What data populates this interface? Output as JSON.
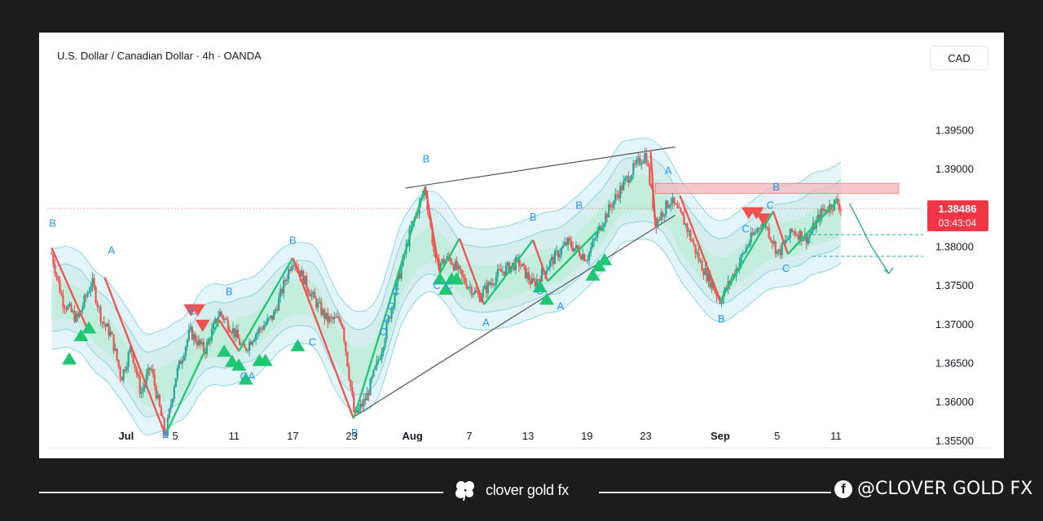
{
  "header": {
    "symbol_title": "U.S. Dollar / Canadian Dollar · 4h · OANDA",
    "currency": "CAD"
  },
  "price_badge": {
    "price": "1.38486",
    "countdown": "03:43:04",
    "color": "#f23645"
  },
  "footer": {
    "brand": "clover gold fx",
    "social": "@CLOVER GOLD FX"
  },
  "colors": {
    "bull": "#26a69a",
    "bear": "#ef5350",
    "label": "#2196f3",
    "triangle": "#1fc773"
  },
  "chart_data": {
    "type": "candlestick",
    "symbol": "USDCAD",
    "timeframe": "4h",
    "ylim": [
      1.352,
      1.397
    ],
    "y_ticks": [
      1.395,
      1.39,
      1.385,
      1.38,
      1.375,
      1.37,
      1.365,
      1.36,
      1.355
    ],
    "y_tick_labels": [
      "1.39500",
      "1.39000",
      "1.38500",
      "1.38000",
      "1.37500",
      "1.37000",
      "1.36500",
      "1.36000",
      "1.35500"
    ],
    "x_ticks": [
      "Jul",
      "5",
      "11",
      "17",
      "23",
      "Aug",
      "7",
      "13",
      "19",
      "23",
      "Sep",
      "5",
      "11"
    ],
    "x_tick_days": [
      0,
      5,
      11,
      17,
      23,
      29.2,
      35,
      41,
      47,
      53,
      60.6,
      66.4,
      72.4
    ],
    "x_range_days": [
      -7.8,
      81.3
    ],
    "current_price": 1.38486,
    "price_path": [
      [
        -7.6,
        1.379
      ],
      [
        -6.5,
        1.373
      ],
      [
        -5,
        1.3705
      ],
      [
        -3.5,
        1.3755
      ],
      [
        -2.5,
        1.3705
      ],
      [
        -1.5,
        1.3685
      ],
      [
        -0.5,
        1.363
      ],
      [
        0.5,
        1.367
      ],
      [
        1.5,
        1.361
      ],
      [
        2.5,
        1.3645
      ],
      [
        4,
        1.3555
      ],
      [
        5,
        1.363
      ],
      [
        6.5,
        1.369
      ],
      [
        8,
        1.3665
      ],
      [
        9.5,
        1.3715
      ],
      [
        11,
        1.369
      ],
      [
        12,
        1.3665
      ],
      [
        13,
        1.3685
      ],
      [
        15,
        1.371
      ],
      [
        17,
        1.3785
      ],
      [
        19,
        1.3735
      ],
      [
        20.5,
        1.3705
      ],
      [
        22,
        1.3705
      ],
      [
        23.3,
        1.358
      ],
      [
        24.5,
        1.3605
      ],
      [
        26,
        1.3665
      ],
      [
        27.5,
        1.3745
      ],
      [
        29,
        1.382
      ],
      [
        30.5,
        1.3875
      ],
      [
        31.6,
        1.3775
      ],
      [
        33,
        1.3785
      ],
      [
        34.5,
        1.3755
      ],
      [
        36,
        1.3735
      ],
      [
        38,
        1.3765
      ],
      [
        40,
        1.378
      ],
      [
        41.5,
        1.375
      ],
      [
        43,
        1.3775
      ],
      [
        45,
        1.3805
      ],
      [
        47,
        1.3785
      ],
      [
        48.5,
        1.383
      ],
      [
        50,
        1.3865
      ],
      [
        51.5,
        1.3895
      ],
      [
        53,
        1.392
      ],
      [
        54,
        1.383
      ],
      [
        55.5,
        1.386
      ],
      [
        57,
        1.383
      ],
      [
        58.5,
        1.378
      ],
      [
        60.6,
        1.373
      ],
      [
        62,
        1.3765
      ],
      [
        63.5,
        1.3805
      ],
      [
        65,
        1.3835
      ],
      [
        66.5,
        1.379
      ],
      [
        68,
        1.382
      ],
      [
        69.5,
        1.381
      ],
      [
        71,
        1.3845
      ],
      [
        72.5,
        1.3858
      ],
      [
        72.9,
        1.38486
      ]
    ],
    "trendlines": [
      {
        "from": [
          28.5,
          1.3875
        ],
        "to": [
          56,
          1.3928
        ],
        "color": "#555555"
      },
      {
        "from": [
          23.2,
          1.358
        ],
        "to": [
          56,
          1.384
        ],
        "color": "#555555"
      },
      {
        "from": [
          -8,
          1.38486
        ],
        "to": [
          81.3,
          1.38486
        ],
        "color": "#ef5350",
        "style": "dotted"
      },
      {
        "from": [
          70,
          1.3815
        ],
        "to": [
          81.3,
          1.3815
        ],
        "color": "#26a69a",
        "style": "dashed"
      },
      {
        "from": [
          70,
          1.3787
        ],
        "to": [
          81.3,
          1.3787
        ],
        "color": "#26a69a",
        "style": "dashed"
      }
    ],
    "zigzag": [
      {
        "from": [
          -7.6,
          1.3798
        ],
        "to": [
          -4,
          1.3695
        ],
        "color": "#ef5350"
      },
      {
        "from": [
          -2.2,
          1.376
        ],
        "to": [
          4,
          1.3557
        ],
        "color": "#ef5350"
      },
      {
        "from": [
          4,
          1.3557
        ],
        "to": [
          9.5,
          1.3705
        ],
        "color": "#1fc773"
      },
      {
        "from": [
          9.5,
          1.3705
        ],
        "to": [
          11.5,
          1.3665
        ],
        "color": "#ef5350"
      },
      {
        "from": [
          11.5,
          1.3665
        ],
        "to": [
          17,
          1.3785
        ],
        "color": "#1fc773"
      },
      {
        "from": [
          17,
          1.3785
        ],
        "to": [
          23.2,
          1.3578
        ],
        "color": "#ef5350"
      },
      {
        "from": [
          23.2,
          1.3578
        ],
        "to": [
          30.5,
          1.3877
        ],
        "color": "#1fc773"
      },
      {
        "from": [
          30.5,
          1.3877
        ],
        "to": [
          32,
          1.3765
        ],
        "color": "#ef5350"
      },
      {
        "from": [
          32,
          1.3765
        ],
        "to": [
          34,
          1.381
        ],
        "color": "#1fc773"
      },
      {
        "from": [
          34,
          1.381
        ],
        "to": [
          36.5,
          1.3725
        ],
        "color": "#ef5350"
      },
      {
        "from": [
          36.5,
          1.3725
        ],
        "to": [
          41.5,
          1.3808
        ],
        "color": "#1fc773"
      },
      {
        "from": [
          41.5,
          1.3808
        ],
        "to": [
          43,
          1.3755
        ],
        "color": "#ef5350"
      },
      {
        "from": [
          43,
          1.3755
        ],
        "to": [
          48.5,
          1.3825
        ],
        "color": "#1fc773"
      },
      {
        "from": [
          53.5,
          1.3922
        ],
        "to": [
          54,
          1.3825
        ],
        "color": "#ef5350"
      },
      {
        "from": [
          56.5,
          1.3865
        ],
        "to": [
          60.6,
          1.373
        ],
        "color": "#ef5350"
      },
      {
        "from": [
          60.6,
          1.373
        ],
        "to": [
          66,
          1.3845
        ],
        "color": "#1fc773"
      },
      {
        "from": [
          66,
          1.3845
        ],
        "to": [
          67.5,
          1.379
        ],
        "color": "#ef5350"
      },
      {
        "from": [
          67.5,
          1.379
        ],
        "to": [
          72.5,
          1.3858
        ],
        "color": "#1fc773"
      }
    ],
    "zones": [
      {
        "x": [
          54,
          78.8
        ],
        "y": [
          1.3868,
          1.3881
        ],
        "color": "#f5b8bd"
      }
    ],
    "forecast_arrow": {
      "from": [
        73.8,
        1.3855
      ],
      "via": [
        76,
        1.38
      ],
      "to": [
        77.8,
        1.3765
      ],
      "color": "#26a69a"
    },
    "labels": [
      {
        "text": "B",
        "day": -7.5,
        "price": 1.3825
      },
      {
        "text": "A",
        "day": -1.5,
        "price": 1.379
      },
      {
        "text": "B",
        "day": 4,
        "price": 1.3553
      },
      {
        "text": "C",
        "day": 6.8,
        "price": 1.3712
      },
      {
        "text": "B",
        "day": 10.5,
        "price": 1.3737
      },
      {
        "text": "C",
        "day": 12,
        "price": 1.3628
      },
      {
        "text": "A",
        "day": 12.8,
        "price": 1.3628
      },
      {
        "text": "B",
        "day": 17,
        "price": 1.3803
      },
      {
        "text": "C",
        "day": 19,
        "price": 1.3672
      },
      {
        "text": "B",
        "day": 23.3,
        "price": 1.3555
      },
      {
        "text": "C",
        "day": 26.2,
        "price": 1.3685
      },
      {
        "text": "C",
        "day": 26.6,
        "price": 1.3702
      },
      {
        "text": "C",
        "day": 27,
        "price": 1.3718
      },
      {
        "text": "C",
        "day": 27.5,
        "price": 1.3737
      },
      {
        "text": "B",
        "day": 30.6,
        "price": 1.3908
      },
      {
        "text": "C",
        "day": 31.7,
        "price": 1.3745
      },
      {
        "text": "C",
        "day": 32.9,
        "price": 1.3745
      },
      {
        "text": "A",
        "day": 36.7,
        "price": 1.3697
      },
      {
        "text": "B",
        "day": 41.5,
        "price": 1.3833
      },
      {
        "text": "C",
        "day": 42.2,
        "price": 1.3738
      },
      {
        "text": "A",
        "day": 44.3,
        "price": 1.3718
      },
      {
        "text": "B",
        "day": 46.2,
        "price": 1.3848
      },
      {
        "text": "A",
        "day": 55.3,
        "price": 1.3893
      },
      {
        "text": "B",
        "day": 60.7,
        "price": 1.3702
      },
      {
        "text": "C",
        "day": 63.2,
        "price": 1.3818
      },
      {
        "text": "C",
        "day": 65.7,
        "price": 1.3848
      },
      {
        "text": "B",
        "day": 66.3,
        "price": 1.3872
      },
      {
        "text": "C",
        "day": 67.3,
        "price": 1.3767
      }
    ],
    "buy_signals": [
      [
        -5.8,
        1.3655
      ],
      [
        -4.6,
        1.3685
      ],
      [
        -3.8,
        1.3695
      ],
      [
        10,
        1.3665
      ],
      [
        10.8,
        1.3652
      ],
      [
        11.5,
        1.3647
      ],
      [
        12.2,
        1.3629
      ],
      [
        13.6,
        1.3653
      ],
      [
        14.2,
        1.3653
      ],
      [
        17.5,
        1.3672
      ],
      [
        32,
        1.3758
      ],
      [
        32.6,
        1.3745
      ],
      [
        33.2,
        1.3758
      ],
      [
        33.7,
        1.3758
      ],
      [
        42.2,
        1.3748
      ],
      [
        42.9,
        1.3732
      ],
      [
        47.6,
        1.3763
      ],
      [
        48.2,
        1.3775
      ],
      [
        48.8,
        1.3783
      ]
    ],
    "sell_signals": [
      [
        6.6,
        1.3718
      ],
      [
        7.3,
        1.3718
      ],
      [
        7.8,
        1.3698
      ],
      [
        63.5,
        1.3843
      ],
      [
        64.3,
        1.3843
      ],
      [
        65,
        1.3835
      ]
    ]
  }
}
